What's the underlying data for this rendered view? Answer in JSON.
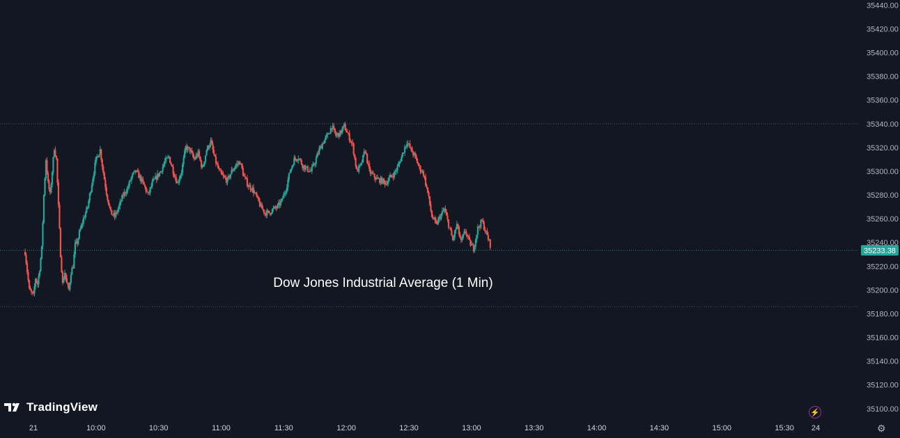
{
  "chart_data": {
    "type": "candlestick",
    "title": "Dow Jones Industrial Average (1 Min)",
    "ylim": [
      35094,
      35442
    ],
    "y_ticks": [
      "35440.00",
      "35420.00",
      "35400.00",
      "35380.00",
      "35360.00",
      "35340.00",
      "35320.00",
      "35300.00",
      "35280.00",
      "35260.00",
      "35240.00",
      "35220.00",
      "35200.00",
      "35180.00",
      "35160.00",
      "35140.00",
      "35120.00",
      "35100.00"
    ],
    "x_ticks": [
      "21",
      "10:00",
      "10:30",
      "11:00",
      "11:30",
      "12:00",
      "12:30",
      "13:00",
      "13:30",
      "14:00",
      "14:30",
      "15:00",
      "15:30",
      "24"
    ],
    "x_tick_values": [
      0,
      30,
      60,
      90,
      120,
      150,
      180,
      210,
      240,
      270,
      300,
      330,
      360,
      375
    ],
    "last_price": "35233.38",
    "reference_lines": [
      35340,
      35233.38,
      35186
    ],
    "colors": {
      "up": "#26A69A",
      "down": "#EF5350",
      "background": "#131722",
      "text": "#B2B5BE",
      "last_price_bg": "#26A69A"
    },
    "anchors": [
      [
        -4,
        35232
      ],
      [
        -2,
        35200
      ],
      [
        0,
        35195
      ],
      [
        1,
        35210
      ],
      [
        2,
        35205
      ],
      [
        3,
        35218
      ],
      [
        4,
        35235
      ],
      [
        5,
        35280
      ],
      [
        6,
        35310
      ],
      [
        7,
        35290
      ],
      [
        8,
        35280
      ],
      [
        9,
        35300
      ],
      [
        10,
        35320
      ],
      [
        11,
        35310
      ],
      [
        12,
        35270
      ],
      [
        13,
        35230
      ],
      [
        14,
        35205
      ],
      [
        15,
        35215
      ],
      [
        16,
        35205
      ],
      [
        17,
        35200
      ],
      [
        18,
        35215
      ],
      [
        19,
        35220
      ],
      [
        20,
        35238
      ],
      [
        21,
        35240
      ],
      [
        22,
        35248
      ],
      [
        24,
        35260
      ],
      [
        26,
        35270
      ],
      [
        28,
        35290
      ],
      [
        30,
        35310
      ],
      [
        32,
        35318
      ],
      [
        33,
        35305
      ],
      [
        35,
        35282
      ],
      [
        37,
        35265
      ],
      [
        39,
        35262
      ],
      [
        41,
        35270
      ],
      [
        43,
        35280
      ],
      [
        45,
        35285
      ],
      [
        47,
        35295
      ],
      [
        49,
        35300
      ],
      [
        51,
        35295
      ],
      [
        53,
        35288
      ],
      [
        55,
        35280
      ],
      [
        57,
        35290
      ],
      [
        59,
        35295
      ],
      [
        61,
        35300
      ],
      [
        63,
        35308
      ],
      [
        65,
        35312
      ],
      [
        67,
        35300
      ],
      [
        69,
        35290
      ],
      [
        71,
        35300
      ],
      [
        73,
        35320
      ],
      [
        75,
        35318
      ],
      [
        77,
        35310
      ],
      [
        79,
        35315
      ],
      [
        81,
        35302
      ],
      [
        83,
        35318
      ],
      [
        85,
        35325
      ],
      [
        87,
        35310
      ],
      [
        89,
        35300
      ],
      [
        91,
        35295
      ],
      [
        93,
        35292
      ],
      [
        95,
        35300
      ],
      [
        97,
        35305
      ],
      [
        99,
        35308
      ],
      [
        101,
        35295
      ],
      [
        103,
        35288
      ],
      [
        105,
        35285
      ],
      [
        107,
        35278
      ],
      [
        109,
        35270
      ],
      [
        111,
        35265
      ],
      [
        113,
        35265
      ],
      [
        115,
        35268
      ],
      [
        117,
        35270
      ],
      [
        119,
        35275
      ],
      [
        121,
        35285
      ],
      [
        123,
        35300
      ],
      [
        125,
        35310
      ],
      [
        127,
        35312
      ],
      [
        129,
        35305
      ],
      [
        131,
        35302
      ],
      [
        133,
        35300
      ],
      [
        135,
        35308
      ],
      [
        137,
        35318
      ],
      [
        139,
        35325
      ],
      [
        141,
        35330
      ],
      [
        143,
        35338
      ],
      [
        145,
        35330
      ],
      [
        147,
        35332
      ],
      [
        149,
        35338
      ],
      [
        151,
        35330
      ],
      [
        153,
        35322
      ],
      [
        155,
        35300
      ],
      [
        157,
        35305
      ],
      [
        159,
        35318
      ],
      [
        161,
        35300
      ],
      [
        163,
        35296
      ],
      [
        165,
        35293
      ],
      [
        167,
        35292
      ],
      [
        169,
        35290
      ],
      [
        171,
        35295
      ],
      [
        173,
        35298
      ],
      [
        175,
        35305
      ],
      [
        177,
        35315
      ],
      [
        179,
        35325
      ],
      [
        181,
        35318
      ],
      [
        183,
        35312
      ],
      [
        185,
        35303
      ],
      [
        187,
        35298
      ],
      [
        189,
        35282
      ],
      [
        191,
        35262
      ],
      [
        193,
        35255
      ],
      [
        195,
        35262
      ],
      [
        197,
        35268
      ],
      [
        199,
        35255
      ],
      [
        201,
        35242
      ],
      [
        203,
        35255
      ],
      [
        205,
        35240
      ],
      [
        207,
        35250
      ],
      [
        209,
        35240
      ],
      [
        211,
        35235
      ],
      [
        213,
        35252
      ],
      [
        215,
        35258
      ],
      [
        217,
        35248
      ],
      [
        219,
        35238
      ]
    ]
  },
  "branding": {
    "name": "TradingView"
  }
}
